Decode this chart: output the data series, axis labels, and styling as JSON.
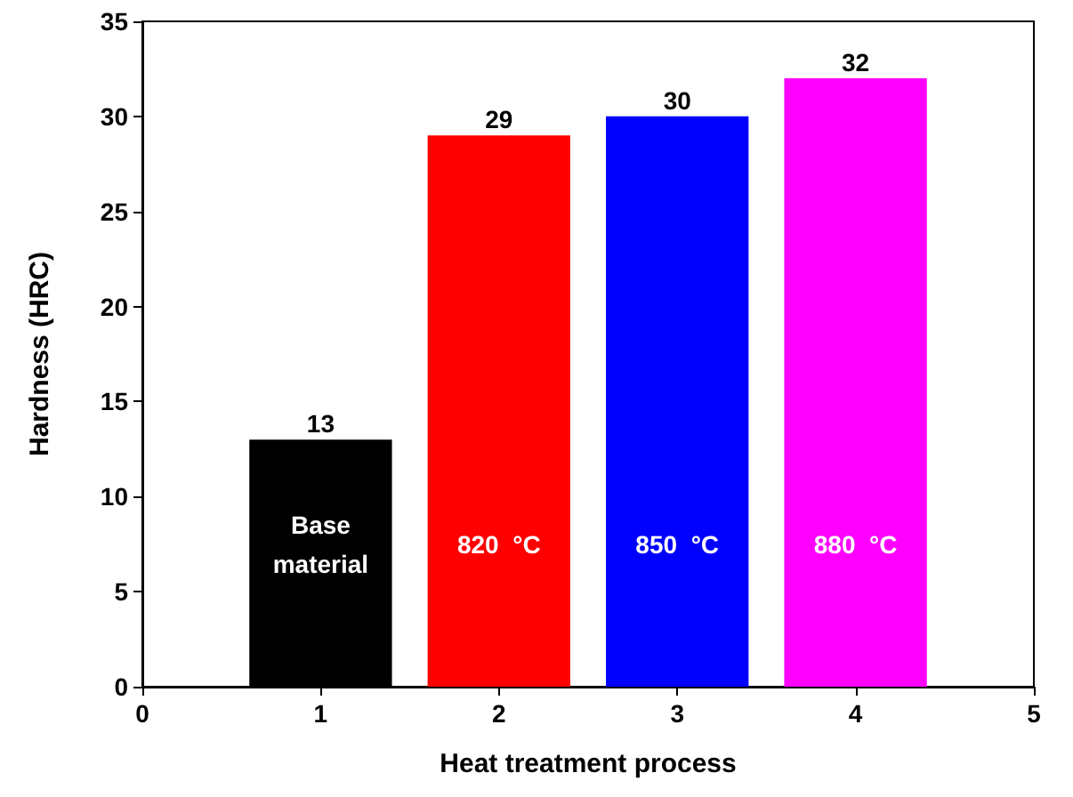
{
  "chart_data": {
    "type": "bar",
    "xlabel": "Heat treatment process",
    "ylabel": "Hardness (HRC)",
    "x": [
      1,
      2,
      3,
      4
    ],
    "values": [
      13,
      29,
      30,
      32
    ],
    "colors": [
      "#000000",
      "#ff0000",
      "#0000ff",
      "#ff00ff"
    ],
    "xlim": [
      0,
      5
    ],
    "xticks": [
      0,
      1,
      2,
      3,
      4,
      5
    ],
    "ylim": [
      0,
      35
    ],
    "yticks": [
      0,
      5,
      10,
      15,
      20,
      25,
      30,
      35
    ],
    "data_labels": true,
    "annotations": [
      "Base\nmaterial",
      "820  °C",
      "850  °C",
      "880  °C"
    ]
  }
}
